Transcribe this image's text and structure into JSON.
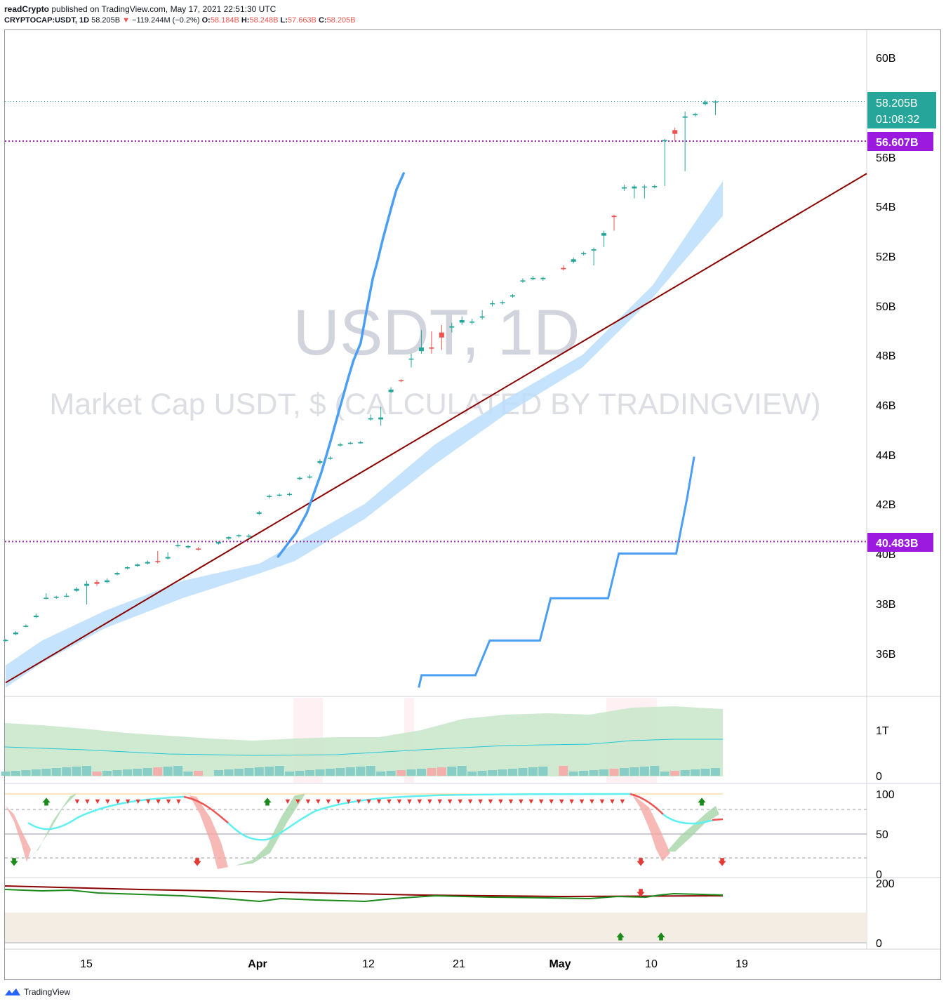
{
  "header": {
    "author": "readCrypto",
    "published_text": "published on TradingView.com, May 17, 2021 22:51:30 UTC",
    "symbol": "CRYPTOCAP:USDT, 1D",
    "last": "58.205B",
    "change": "−119.244M (−0.2%)",
    "o_label": "O:",
    "o_value": "58.184B",
    "h_label": "H:",
    "h_value": "58.248B",
    "l_label": "L:",
    "l_value": "57.663B",
    "c_label": "C:",
    "c_value": "58.205B"
  },
  "watermark": {
    "line1": "USDT, 1D",
    "line2": "Market Cap USDT, $ (CALCULATED BY TRADINGVIEW)"
  },
  "price_labels": {
    "current": "58.205B",
    "countdown": "01:08:32",
    "level_high": "56.607B",
    "level_low": "40.483B"
  },
  "price_axis": [
    "60B",
    "56B",
    "54B",
    "52B",
    "50B",
    "48B",
    "46B",
    "44B",
    "42B",
    "40B",
    "38B",
    "36B"
  ],
  "volume_axis": [
    "1T",
    "0"
  ],
  "stoch_axis": [
    "100",
    "50",
    "0"
  ],
  "bottom_axis": [
    "200",
    "0"
  ],
  "time_axis": [
    "15",
    "Apr",
    "12",
    "21",
    "May",
    "10",
    "19"
  ],
  "footer": {
    "brand": "TradingView"
  },
  "colors": {
    "up": "#26a69a",
    "down": "#ef5350",
    "ma": "#4a9ff5",
    "band": "#bbdefb",
    "trend": "#8b0000",
    "level": "#9c27b0",
    "label_purple": "#9c19e0",
    "label_teal": "#26a69a"
  },
  "chart_data": {
    "type": "candlestick",
    "interval": "1D",
    "date_range": [
      "2021-03-08",
      "2021-05-17"
    ],
    "ylim": [
      34.6,
      61.5
    ],
    "y_unit": "B",
    "horizontal_levels": [
      56.607,
      40.483
    ],
    "candles": [
      {
        "d": "2021-03-08",
        "o": 36.5,
        "c": 36.52,
        "h": 36.57,
        "l": 36.45
      },
      {
        "d": "2021-03-09",
        "o": 36.75,
        "c": 36.82,
        "h": 36.87,
        "l": 36.72
      },
      {
        "d": "2021-03-10",
        "o": 37.06,
        "c": 37.09,
        "h": 37.15,
        "l": 37.03
      },
      {
        "d": "2021-03-11",
        "o": 37.44,
        "c": 37.5,
        "h": 37.58,
        "l": 37.4
      },
      {
        "d": "2021-03-12",
        "o": 38.2,
        "c": 38.22,
        "h": 38.4,
        "l": 38.15
      },
      {
        "d": "2021-03-13",
        "o": 38.22,
        "c": 38.26,
        "h": 38.3,
        "l": 38.18
      },
      {
        "d": "2021-03-14",
        "o": 38.27,
        "c": 38.3,
        "h": 38.4,
        "l": 38.24
      },
      {
        "d": "2021-03-15",
        "o": 38.5,
        "c": 38.58,
        "h": 38.65,
        "l": 38.45
      },
      {
        "d": "2021-03-16",
        "o": 38.7,
        "c": 38.78,
        "h": 38.9,
        "l": 37.95
      },
      {
        "d": "2021-03-17",
        "o": 38.85,
        "c": 38.78,
        "h": 38.95,
        "l": 38.7
      },
      {
        "d": "2021-03-18",
        "o": 38.85,
        "c": 38.92,
        "h": 39.0,
        "l": 38.8
      },
      {
        "d": "2021-03-19",
        "o": 39.16,
        "c": 39.22,
        "h": 39.26,
        "l": 39.12
      },
      {
        "d": "2021-03-20",
        "o": 39.4,
        "c": 39.45,
        "h": 39.48,
        "l": 39.36
      },
      {
        "d": "2021-03-21",
        "o": 39.5,
        "c": 39.56,
        "h": 39.6,
        "l": 39.46
      },
      {
        "d": "2021-03-22",
        "o": 39.6,
        "c": 39.66,
        "h": 39.72,
        "l": 39.56
      },
      {
        "d": "2021-03-23",
        "o": 39.7,
        "c": 39.66,
        "h": 40.1,
        "l": 39.6
      },
      {
        "d": "2021-03-24",
        "o": 39.8,
        "c": 39.86,
        "h": 40.05,
        "l": 39.76
      },
      {
        "d": "2021-03-25",
        "o": 40.3,
        "c": 40.34,
        "h": 40.45,
        "l": 40.25
      },
      {
        "d": "2021-03-26",
        "o": 40.25,
        "c": 40.3,
        "h": 40.34,
        "l": 40.2
      },
      {
        "d": "2021-03-27",
        "o": 40.2,
        "c": 40.18,
        "h": 40.26,
        "l": 40.12
      },
      {
        "d": "2021-03-29",
        "o": 40.4,
        "c": 40.46,
        "h": 40.5,
        "l": 40.36
      },
      {
        "d": "2021-03-30",
        "o": 40.6,
        "c": 40.66,
        "h": 40.7,
        "l": 40.55
      },
      {
        "d": "2021-03-31",
        "o": 40.7,
        "c": 40.74,
        "h": 40.78,
        "l": 40.65
      },
      {
        "d": "2021-04-01",
        "o": 40.68,
        "c": 40.72,
        "h": 40.78,
        "l": 40.6
      },
      {
        "d": "2021-04-02",
        "o": 41.6,
        "c": 41.66,
        "h": 41.72,
        "l": 41.55
      },
      {
        "d": "2021-04-03",
        "o": 42.3,
        "c": 42.32,
        "h": 42.38,
        "l": 42.22
      },
      {
        "d": "2021-04-04",
        "o": 42.34,
        "c": 42.37,
        "h": 42.42,
        "l": 42.3
      },
      {
        "d": "2021-04-05",
        "o": 42.37,
        "c": 42.4,
        "h": 42.45,
        "l": 42.32
      },
      {
        "d": "2021-04-06",
        "o": 43.0,
        "c": 43.05,
        "h": 43.1,
        "l": 42.95
      },
      {
        "d": "2021-04-07",
        "o": 43.06,
        "c": 43.1,
        "h": 43.18,
        "l": 43.02
      },
      {
        "d": "2021-04-08",
        "o": 43.65,
        "c": 43.72,
        "h": 43.8,
        "l": 43.6
      },
      {
        "d": "2021-04-09",
        "o": 43.82,
        "c": 43.86,
        "h": 43.92,
        "l": 43.78
      },
      {
        "d": "2021-04-10",
        "o": 44.35,
        "c": 44.4,
        "h": 44.46,
        "l": 44.3
      },
      {
        "d": "2021-04-11",
        "o": 44.44,
        "c": 44.46,
        "h": 44.5,
        "l": 44.4
      },
      {
        "d": "2021-04-12",
        "o": 44.46,
        "c": 44.48,
        "h": 44.54,
        "l": 44.42
      },
      {
        "d": "2021-04-13",
        "o": 45.4,
        "c": 45.45,
        "h": 45.6,
        "l": 45.35
      },
      {
        "d": "2021-04-14",
        "o": 45.4,
        "c": 45.48,
        "h": 45.9,
        "l": 45.15
      },
      {
        "d": "2021-04-15",
        "o": 46.5,
        "c": 46.6,
        "h": 46.7,
        "l": 46.45
      },
      {
        "d": "2021-04-16",
        "o": 46.98,
        "c": 46.94,
        "h": 47.02,
        "l": 46.9
      },
      {
        "d": "2021-04-17",
        "o": 47.82,
        "c": 47.85,
        "h": 48.05,
        "l": 47.5
      },
      {
        "d": "2021-04-18",
        "o": 48.15,
        "c": 48.3,
        "h": 49.0,
        "l": 48.05
      },
      {
        "d": "2021-04-19",
        "o": 48.3,
        "c": 48.25,
        "h": 48.95,
        "l": 48.05
      },
      {
        "d": "2021-04-20",
        "o": 48.9,
        "c": 48.7,
        "h": 49.2,
        "l": 48.2
      },
      {
        "d": "2021-04-21",
        "o": 49.1,
        "c": 49.15,
        "h": 49.3,
        "l": 48.9
      },
      {
        "d": "2021-04-22",
        "o": 49.3,
        "c": 49.4,
        "h": 49.55,
        "l": 49.2
      },
      {
        "d": "2021-04-23",
        "o": 49.3,
        "c": 49.34,
        "h": 49.45,
        "l": 49.22
      },
      {
        "d": "2021-04-24",
        "o": 49.5,
        "c": 49.55,
        "h": 49.8,
        "l": 49.42
      },
      {
        "d": "2021-04-25",
        "o": 50.05,
        "c": 50.08,
        "h": 50.18,
        "l": 49.95
      },
      {
        "d": "2021-04-26",
        "o": 50.08,
        "c": 50.12,
        "h": 50.2,
        "l": 50.02
      },
      {
        "d": "2021-04-27",
        "o": 50.35,
        "c": 50.4,
        "h": 50.45,
        "l": 50.3
      },
      {
        "d": "2021-04-28",
        "o": 50.95,
        "c": 51.0,
        "h": 51.08,
        "l": 50.9
      },
      {
        "d": "2021-04-29",
        "o": 51.05,
        "c": 51.1,
        "h": 51.18,
        "l": 51.0
      },
      {
        "d": "2021-04-30",
        "o": 51.05,
        "c": 51.1,
        "h": 51.15,
        "l": 50.98
      },
      {
        "d": "2021-05-02",
        "o": 51.5,
        "c": 51.45,
        "h": 51.6,
        "l": 51.4
      },
      {
        "d": "2021-05-03",
        "o": 51.75,
        "c": 51.85,
        "h": 51.92,
        "l": 51.68
      },
      {
        "d": "2021-05-04",
        "o": 52.05,
        "c": 52.1,
        "h": 52.16,
        "l": 52.0
      },
      {
        "d": "2021-05-05",
        "o": 52.2,
        "c": 52.25,
        "h": 52.32,
        "l": 51.6
      },
      {
        "d": "2021-05-06",
        "o": 52.8,
        "c": 52.9,
        "h": 53.0,
        "l": 52.35
      },
      {
        "d": "2021-05-07",
        "o": 53.6,
        "c": 53.55,
        "h": 53.65,
        "l": 53.0
      },
      {
        "d": "2021-05-08",
        "o": 54.7,
        "c": 54.75,
        "h": 54.85,
        "l": 54.6
      },
      {
        "d": "2021-05-09",
        "o": 54.7,
        "c": 54.78,
        "h": 54.85,
        "l": 54.3
      },
      {
        "d": "2021-05-10",
        "o": 54.75,
        "c": 54.78,
        "h": 54.85,
        "l": 54.3
      },
      {
        "d": "2021-05-11",
        "o": 54.75,
        "c": 54.8,
        "h": 54.85,
        "l": 54.7
      },
      {
        "d": "2021-05-12",
        "o": 56.6,
        "c": 56.65,
        "h": 56.7,
        "l": 54.8
      },
      {
        "d": "2021-05-13",
        "o": 57.05,
        "c": 56.9,
        "h": 57.15,
        "l": 56.6
      },
      {
        "d": "2021-05-14",
        "o": 57.55,
        "c": 57.6,
        "h": 57.8,
        "l": 55.4
      },
      {
        "d": "2021-05-15",
        "o": 57.65,
        "c": 57.7,
        "h": 57.75,
        "l": 57.6
      },
      {
        "d": "2021-05-16",
        "o": 58.1,
        "c": 58.18,
        "h": 58.25,
        "l": 58.05
      },
      {
        "d": "2021-05-17",
        "o": 58.184,
        "c": 58.205,
        "h": 58.248,
        "l": 57.663
      }
    ],
    "moving_average": [
      [
        38.0,
        39.88
      ],
      [
        40.5,
        40.83
      ],
      [
        42.0,
        41.63
      ],
      [
        44.0,
        43.24
      ],
      [
        45.3,
        44.52
      ],
      [
        46.6,
        45.87
      ],
      [
        47.8,
        47.1
      ],
      [
        48.5,
        47.77
      ],
      [
        49.5,
        48.47
      ],
      [
        50.2,
        49.58
      ],
      [
        51.2,
        51.09
      ],
      [
        51.8,
        51.72
      ],
      [
        52.6,
        52.67
      ],
      [
        53.8,
        53.95
      ],
      [
        54.5,
        54.66
      ],
      [
        55.5,
        55.31
      ]
    ],
    "trend_line": [
      [
        0,
        34.8
      ],
      [
        100,
        55.3
      ]
    ],
    "step_line": [
      [
        57.6,
        34.6
      ],
      [
        58.0,
        35.1
      ],
      [
        65.5,
        35.1
      ],
      [
        67.5,
        36.5
      ],
      [
        74.5,
        36.5
      ],
      [
        76.0,
        38.2
      ],
      [
        84.0,
        38.2
      ],
      [
        85.5,
        40.0
      ],
      [
        93.5,
        40.0
      ],
      [
        95.0,
        42.2
      ],
      [
        96.0,
        43.9
      ]
    ]
  }
}
